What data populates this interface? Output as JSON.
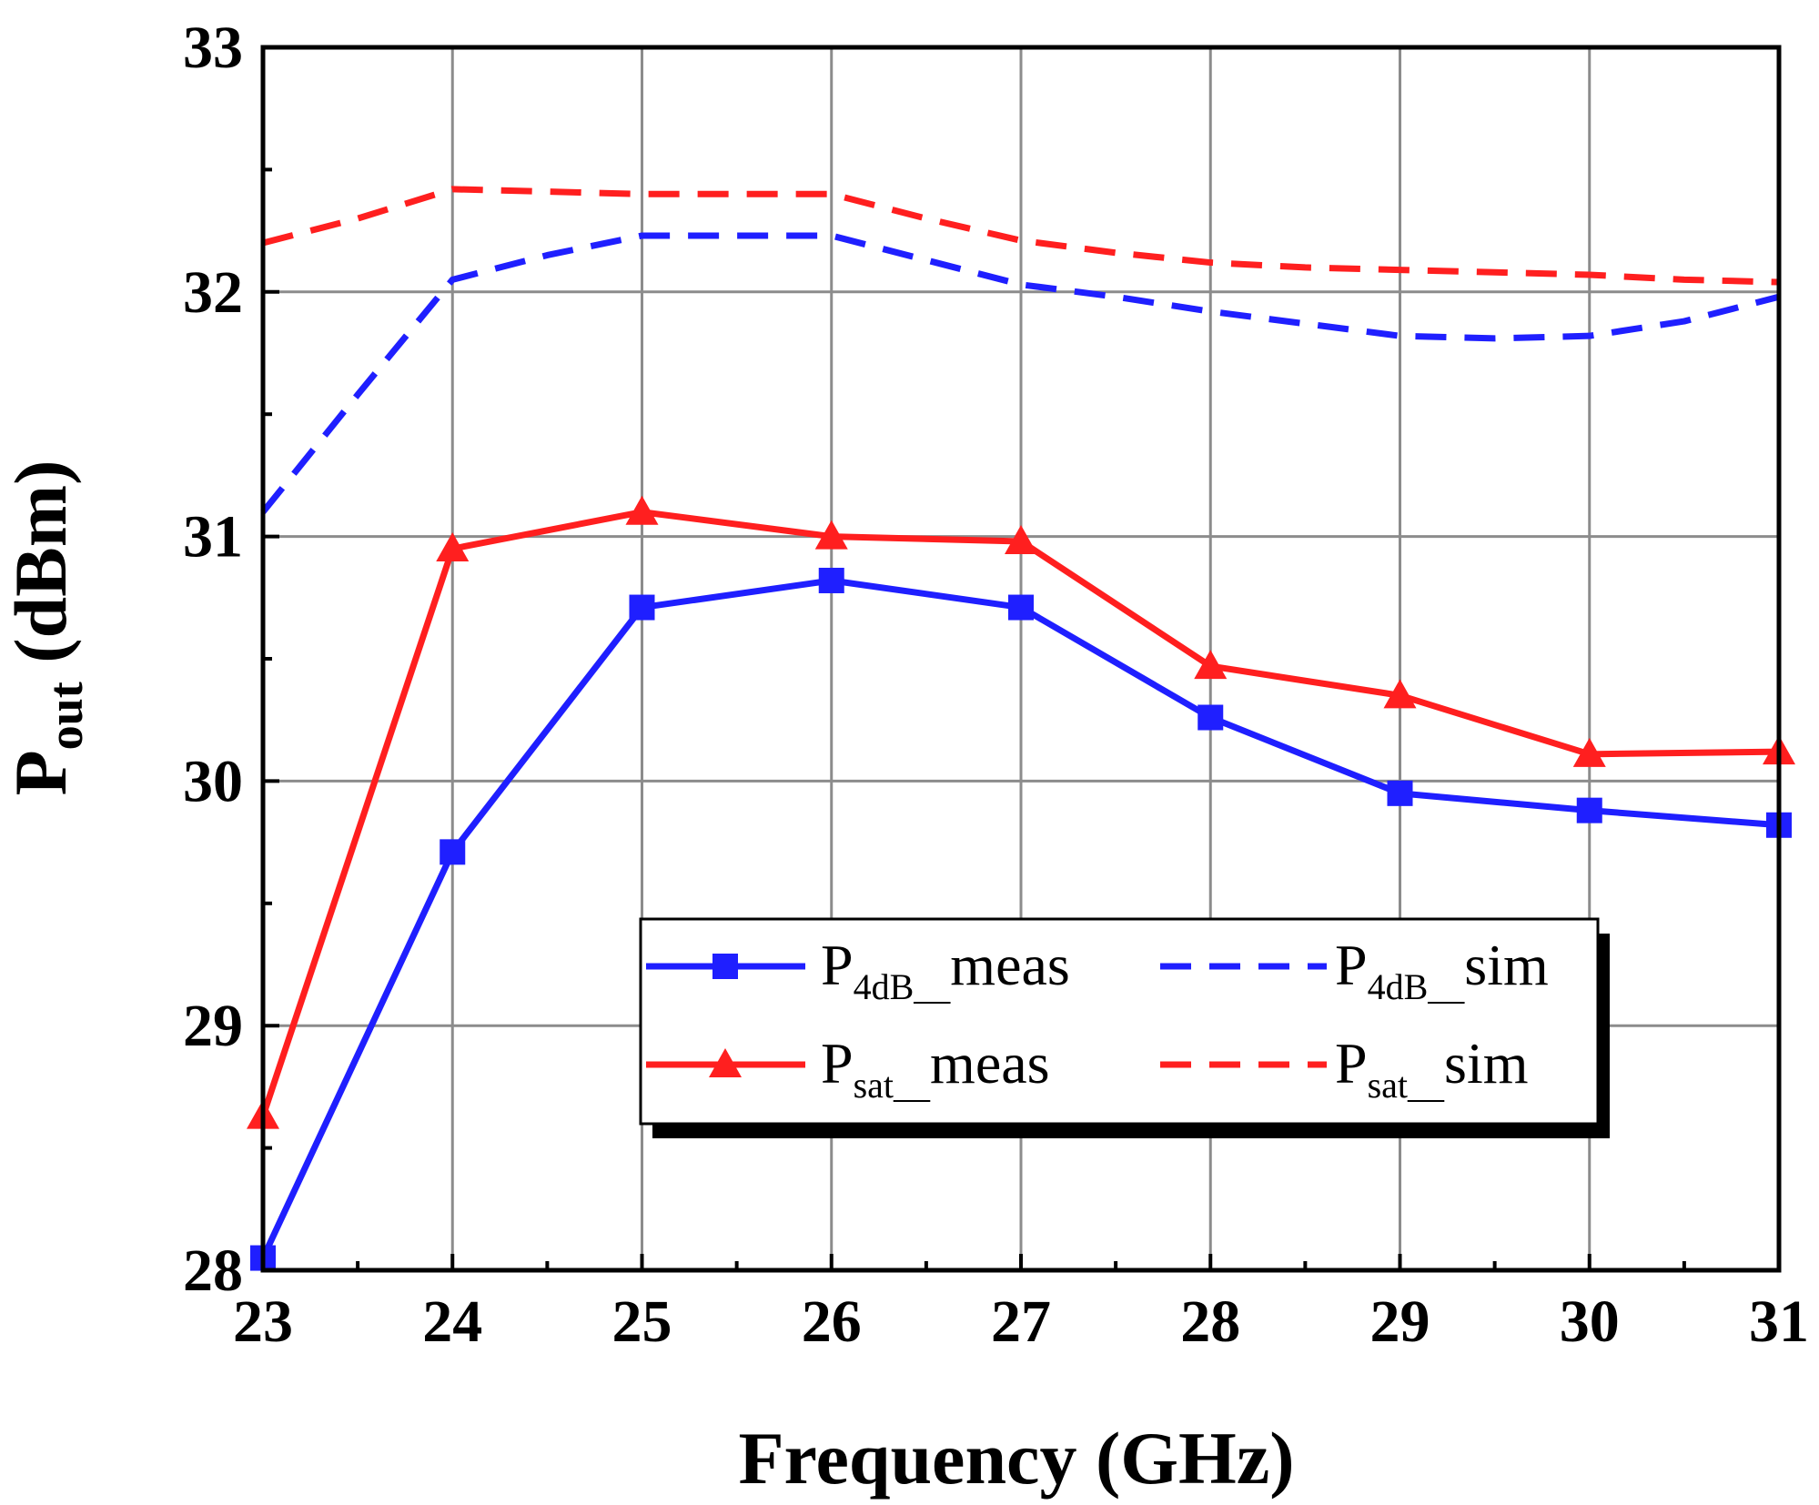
{
  "chart_data": {
    "type": "line",
    "title": "",
    "xlabel": "Frequency (GHz)",
    "ylabel_main": "P",
    "ylabel_sub": "out",
    "ylabel_unit": " (dBm)",
    "xlim": [
      23,
      31
    ],
    "ylim": [
      28,
      33
    ],
    "x_ticks": [
      23,
      24,
      25,
      26,
      27,
      28,
      29,
      30,
      31
    ],
    "y_ticks": [
      28,
      29,
      30,
      31,
      32,
      33
    ],
    "grid": true,
    "legend_position": "lower-center",
    "series": [
      {
        "name": "P4dB_meas",
        "label_main": "P",
        "label_sub": "4dB__",
        "label_tail": "meas",
        "color": "#1f1fff",
        "style": "solid",
        "marker": "square",
        "x": [
          23,
          24,
          25,
          26,
          27,
          28,
          29,
          30,
          31
        ],
        "y": [
          28.05,
          29.71,
          30.71,
          30.82,
          30.71,
          30.26,
          29.95,
          29.88,
          29.82
        ]
      },
      {
        "name": "P4dB_sim",
        "label_main": "P",
        "label_sub": "4dB__",
        "label_tail": "sim",
        "color": "#1f1fff",
        "style": "dashed",
        "marker": "none",
        "x": [
          23,
          23.5,
          24,
          24.5,
          25,
          25.5,
          26,
          26.5,
          27,
          27.5,
          28,
          28.5,
          29,
          29.5,
          30,
          30.5,
          31
        ],
        "y": [
          31.1,
          31.58,
          32.05,
          32.15,
          32.23,
          32.23,
          32.23,
          32.13,
          32.03,
          31.98,
          31.92,
          31.87,
          31.82,
          31.81,
          31.82,
          31.88,
          31.98
        ]
      },
      {
        "name": "Psat_meas",
        "label_main": "P",
        "label_sub": "sat__",
        "label_tail": "meas",
        "color": "#ff1f1f",
        "style": "solid",
        "marker": "triangle",
        "x": [
          23,
          24,
          25,
          26,
          27,
          28,
          29,
          30,
          31
        ],
        "y": [
          28.63,
          30.95,
          31.1,
          31.0,
          30.98,
          30.47,
          30.35,
          30.11,
          30.12
        ]
      },
      {
        "name": "Psat_sim",
        "label_main": "P",
        "label_sub": "sat__",
        "label_tail": "sim",
        "color": "#ff1f1f",
        "style": "dashed",
        "marker": "none",
        "x": [
          23,
          23.5,
          24,
          24.5,
          25,
          25.5,
          26,
          26.5,
          27,
          27.5,
          28,
          28.5,
          29,
          29.5,
          30,
          30.5,
          31
        ],
        "y": [
          32.2,
          32.3,
          32.42,
          32.41,
          32.4,
          32.4,
          32.4,
          32.3,
          32.21,
          32.16,
          32.12,
          32.1,
          32.09,
          32.08,
          32.07,
          32.05,
          32.04
        ]
      }
    ]
  }
}
